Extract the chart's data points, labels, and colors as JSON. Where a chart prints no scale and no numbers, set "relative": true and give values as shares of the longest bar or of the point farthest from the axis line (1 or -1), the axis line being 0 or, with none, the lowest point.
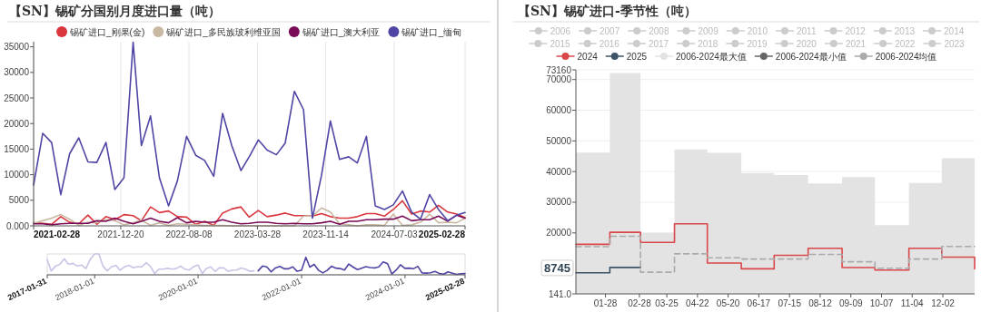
{
  "chart_data": [
    {
      "type": "line",
      "title": "【SN】锡矿分国别月度进口量（吨）",
      "legend": "top",
      "grid": "x",
      "marker": "none",
      "x": [
        "2021-02-28",
        "2021-03-31",
        "2021-04-30",
        "2021-05-31",
        "2021-06-30",
        "2021-07-31",
        "2021-08-31",
        "2021-09-30",
        "2021-10-31",
        "2021-11-30",
        "2021-12-31",
        "2022-01-31",
        "2022-02-28",
        "2022-03-31",
        "2022-04-30",
        "2022-05-31",
        "2022-06-30",
        "2022-07-31",
        "2022-08-31",
        "2022-09-30",
        "2022-10-31",
        "2022-11-30",
        "2022-12-31",
        "2023-01-31",
        "2023-02-28",
        "2023-03-31",
        "2023-04-30",
        "2023-05-31",
        "2023-06-30",
        "2023-07-31",
        "2023-08-31",
        "2023-09-30",
        "2023-10-31",
        "2023-11-30",
        "2023-12-31",
        "2024-01-31",
        "2024-02-29",
        "2024-03-31",
        "2024-04-30",
        "2024-05-31",
        "2024-06-30",
        "2024-07-31",
        "2024-08-31",
        "2024-09-30",
        "2024-10-31",
        "2024-11-30",
        "2024-12-31",
        "2025-01-31",
        "2025-02-28"
      ],
      "xlim": [
        "2021-02-28",
        "2025-02-28"
      ],
      "xticks": [
        "2021-02-28",
        "2021-12-20",
        "2022-08-08",
        "2023-03-28",
        "2023-11-14",
        "2024-07-03",
        "2025-02-28"
      ],
      "ylim": [
        0,
        36000
      ],
      "yticks": [
        {
          "value": 0,
          "label": "0.000"
        },
        5000,
        10000,
        15000,
        20000,
        25000,
        30000,
        35000
      ],
      "series": [
        {
          "name": "锡矿进口_刚果(金)",
          "color": "#d9363e",
          "values": [
            600,
            500,
            300,
            1800,
            700,
            400,
            2100,
            300,
            1800,
            1200,
            2200,
            2000,
            1000,
            3700,
            2600,
            2900,
            1800,
            1700,
            300,
            900,
            100,
            2500,
            3300,
            3700,
            1700,
            3000,
            1800,
            2100,
            2500,
            2000,
            2000,
            1900,
            2400,
            1800,
            1500,
            1500,
            1800,
            2400,
            2400,
            1900,
            3200,
            4900,
            2300,
            2900,
            2700,
            4000,
            2700,
            2300,
            1600
          ]
        },
        {
          "name": "锡矿进口_多民族玻利维亚国",
          "color": "#c9b9a3",
          "values": [
            500,
            1000,
            1500,
            2200,
            1300,
            100,
            700,
            600,
            1200,
            1000,
            200,
            600,
            1100,
            100,
            600,
            100,
            400,
            300,
            200,
            100,
            100,
            100,
            0,
            0,
            0,
            0,
            0,
            0,
            0,
            0,
            1900,
            1900,
            3500,
            2700,
            400,
            200,
            0,
            200,
            200,
            100,
            2300,
            100,
            200,
            700,
            2300,
            600,
            700,
            600,
            1500
          ]
        },
        {
          "name": "锡矿进口_澳大利亚",
          "color": "#7a0b56",
          "values": [
            400,
            400,
            200,
            400,
            500,
            500,
            500,
            1000,
            900,
            1500,
            900,
            400,
            900,
            1500,
            900,
            600,
            1600,
            600,
            900,
            700,
            700,
            1200,
            700,
            400,
            500,
            700,
            700,
            500,
            400,
            500,
            400,
            400,
            600,
            900,
            300,
            900,
            900,
            1200,
            1200,
            1300,
            1300,
            1900,
            1000,
            1200,
            1200,
            1900,
            900,
            2100,
            1500
          ]
        },
        {
          "name": "锡矿进口_缅甸",
          "color": "#4e45a4",
          "values": [
            8000,
            18100,
            16300,
            6100,
            14100,
            17200,
            12500,
            12400,
            16300,
            7100,
            9400,
            35900,
            15700,
            21500,
            9400,
            3900,
            8800,
            17500,
            13800,
            12800,
            9700,
            22000,
            15700,
            10800,
            13500,
            16800,
            14800,
            13900,
            16200,
            26300,
            22700,
            1500,
            9900,
            20500,
            13000,
            13500,
            12300,
            17500,
            3900,
            3200,
            4100,
            6800,
            2700,
            1300,
            6100,
            3200,
            1000,
            2100,
            2600
          ]
        }
      ]
    },
    {
      "type": "line",
      "relative": true,
      "marker": "none",
      "xlim": [
        "2017-01-31",
        "2025-02-28"
      ],
      "xticks": [
        "2017-01-31",
        "2018-01-01",
        "2020-01-01",
        "2022-01-01",
        "2024-01-01",
        "2025-02-28"
      ],
      "series": [
        {
          "color": "#c9c3e6",
          "x": [
            "2017-01-31",
            "2017-02-28",
            "2017-03-31",
            "2017-04-30",
            "2017-05-31",
            "2017-06-30",
            "2017-07-31",
            "2017-08-31",
            "2017-09-30",
            "2017-10-31",
            "2017-11-30",
            "2017-12-31",
            "2018-01-31",
            "2018-02-28",
            "2018-03-31",
            "2018-04-30",
            "2018-05-31",
            "2018-06-30",
            "2018-07-31",
            "2018-08-31",
            "2018-09-30",
            "2018-10-31",
            "2018-11-30",
            "2018-12-31",
            "2019-01-31",
            "2019-02-28",
            "2019-03-31",
            "2019-04-30",
            "2019-05-31",
            "2019-06-30",
            "2019-07-31",
            "2019-08-31",
            "2019-09-30",
            "2019-10-31",
            "2019-11-30",
            "2019-12-31",
            "2020-01-31",
            "2020-02-29",
            "2020-03-31",
            "2020-04-30",
            "2020-05-31",
            "2020-06-30",
            "2020-07-31",
            "2020-08-31",
            "2020-09-30",
            "2020-10-31",
            "2020-11-30",
            "2020-12-31",
            "2021-01-31"
          ],
          "values": [
            0.73,
            0.19,
            0.42,
            0.5,
            0.77,
            0.5,
            0.55,
            0.42,
            0.47,
            0.3,
            0.73,
            1,
            1,
            0.42,
            0.19,
            0.39,
            0.45,
            0.22,
            0.39,
            0.45,
            0.34,
            0.39,
            0.38,
            0.58,
            0.39,
            0.06,
            0.27,
            0.27,
            0.31,
            0.27,
            0.3,
            0.42,
            0.27,
            0.23,
            0.39,
            0.47,
            0.06,
            0.3,
            0.38,
            0.16,
            0.34,
            0.33,
            0.17,
            0.22,
            0.23,
            0.33,
            0.27,
            0.17,
            0.19
          ]
        },
        {
          "color": "#4e45a4",
          "x": [
            "2021-02-28",
            "2021-03-31",
            "2021-04-30",
            "2021-05-31",
            "2021-06-30",
            "2021-07-31",
            "2021-08-31",
            "2021-09-30",
            "2021-10-31",
            "2021-11-30",
            "2021-12-31",
            "2022-01-31",
            "2022-02-28",
            "2022-03-31",
            "2022-04-30",
            "2022-05-31",
            "2022-06-30",
            "2022-07-31",
            "2022-08-31",
            "2022-09-30",
            "2022-10-31",
            "2022-11-30",
            "2022-12-31",
            "2023-01-31",
            "2023-02-28",
            "2023-03-31",
            "2023-04-30",
            "2023-05-31",
            "2023-06-30",
            "2023-07-31",
            "2023-08-31",
            "2023-09-30",
            "2023-10-31",
            "2023-11-30",
            "2023-12-31",
            "2024-01-31",
            "2024-02-29",
            "2024-03-31",
            "2024-04-30",
            "2024-05-31",
            "2024-06-30",
            "2024-07-31",
            "2024-08-31",
            "2024-09-30",
            "2024-10-31",
            "2024-11-30",
            "2024-12-31",
            "2025-01-31",
            "2025-02-28"
          ],
          "values": [
            0.19,
            0.42,
            0.38,
            0.14,
            0.33,
            0.4,
            0.29,
            0.29,
            0.38,
            0.17,
            0.22,
            0.84,
            0.37,
            0.5,
            0.22,
            0.09,
            0.21,
            0.41,
            0.32,
            0.3,
            0.23,
            0.52,
            0.37,
            0.25,
            0.32,
            0.39,
            0.35,
            0.33,
            0.38,
            0.62,
            0.53,
            0.04,
            0.23,
            0.48,
            0.31,
            0.32,
            0.29,
            0.41,
            0.09,
            0.08,
            0.1,
            0.16,
            0.06,
            0.03,
            0.14,
            0.08,
            0.02,
            0.05,
            0.06
          ]
        }
      ]
    },
    {
      "type": "step",
      "title": "【SN】锡矿进口-季节性（吨）",
      "legend": "top",
      "grid": "y",
      "marker": "none",
      "x": [
        "--01-01",
        "--02-01",
        "--03-01",
        "--04-01",
        "--05-01",
        "--06-01",
        "--07-01",
        "--08-01",
        "--09-01",
        "--10-01",
        "--11-01",
        "--12-01",
        "--12-31"
      ],
      "xlim": [
        "--01-01",
        "--12-31"
      ],
      "xticks": [
        {
          "value": "--01-28",
          "label": "01-28"
        },
        {
          "value": "--02-28",
          "label": "02-28"
        },
        {
          "value": "--03-25",
          "label": "03-25"
        },
        {
          "value": "--04-22",
          "label": "04-22"
        },
        {
          "value": "--05-20",
          "label": "05-20"
        },
        {
          "value": "--06-17",
          "label": "06-17"
        },
        {
          "value": "--07-15",
          "label": "07-15"
        },
        {
          "value": "--08-12",
          "label": "08-12"
        },
        {
          "value": "--09-09",
          "label": "09-09"
        },
        {
          "value": "--10-07",
          "label": "10-07"
        },
        {
          "value": "--11-04",
          "label": "11-04"
        },
        {
          "value": "--12-02",
          "label": "12-02"
        }
      ],
      "ylim": [
        141,
        73160
      ],
      "yticks": [
        {
          "value": 141,
          "label": "141.0"
        },
        20000,
        30000,
        40000,
        50000,
        60000,
        70000,
        73160
      ],
      "annotations": [
        {
          "text": "8745",
          "y": 8745
        }
      ],
      "series": [
        {
          "name": "2006",
          "color": "#cccccc",
          "values": [
            null,
            null,
            null,
            null,
            null,
            null,
            null,
            null,
            null,
            null,
            null,
            null,
            null
          ]
        },
        {
          "name": "2007",
          "color": "#cccccc",
          "values": [
            null,
            null,
            null,
            null,
            null,
            null,
            null,
            null,
            null,
            null,
            null,
            null,
            null
          ]
        },
        {
          "name": "2008",
          "color": "#cccccc",
          "values": [
            null,
            null,
            null,
            null,
            null,
            null,
            null,
            null,
            null,
            null,
            null,
            null,
            null
          ]
        },
        {
          "name": "2009",
          "color": "#cccccc",
          "values": [
            null,
            null,
            null,
            null,
            null,
            null,
            null,
            null,
            null,
            null,
            null,
            null,
            null
          ]
        },
        {
          "name": "2010",
          "color": "#cccccc",
          "values": [
            null,
            null,
            null,
            null,
            null,
            null,
            null,
            null,
            null,
            null,
            null,
            null,
            null
          ]
        },
        {
          "name": "2011",
          "color": "#cccccc",
          "values": [
            null,
            null,
            null,
            null,
            null,
            null,
            null,
            null,
            null,
            null,
            null,
            null,
            null
          ]
        },
        {
          "name": "2012",
          "color": "#cccccc",
          "values": [
            null,
            null,
            null,
            null,
            null,
            null,
            null,
            null,
            null,
            null,
            null,
            null,
            null
          ]
        },
        {
          "name": "2013",
          "color": "#cccccc",
          "values": [
            null,
            null,
            null,
            null,
            null,
            null,
            null,
            null,
            null,
            null,
            null,
            null,
            null
          ]
        },
        {
          "name": "2014",
          "color": "#cccccc",
          "values": [
            null,
            null,
            null,
            null,
            null,
            null,
            null,
            null,
            null,
            null,
            null,
            null,
            null
          ]
        },
        {
          "name": "2015",
          "color": "#cccccc",
          "values": [
            null,
            null,
            null,
            null,
            null,
            null,
            null,
            null,
            null,
            null,
            null,
            null,
            null
          ]
        },
        {
          "name": "2016",
          "color": "#cccccc",
          "values": [
            null,
            null,
            null,
            null,
            null,
            null,
            null,
            null,
            null,
            null,
            null,
            null,
            null
          ]
        },
        {
          "name": "2017",
          "color": "#cccccc",
          "values": [
            null,
            null,
            null,
            null,
            null,
            null,
            null,
            null,
            null,
            null,
            null,
            null,
            null
          ]
        },
        {
          "name": "2018",
          "color": "#cccccc",
          "values": [
            null,
            null,
            null,
            null,
            null,
            null,
            null,
            null,
            null,
            null,
            null,
            null,
            null
          ]
        },
        {
          "name": "2019",
          "color": "#cccccc",
          "values": [
            null,
            null,
            null,
            null,
            null,
            null,
            null,
            null,
            null,
            null,
            null,
            null,
            null
          ]
        },
        {
          "name": "2020",
          "color": "#cccccc",
          "values": [
            null,
            null,
            null,
            null,
            null,
            null,
            null,
            null,
            null,
            null,
            null,
            null,
            null
          ]
        },
        {
          "name": "2021",
          "color": "#cccccc",
          "values": [
            null,
            null,
            null,
            null,
            null,
            null,
            null,
            null,
            null,
            null,
            null,
            null,
            null
          ]
        },
        {
          "name": "2022",
          "color": "#cccccc",
          "values": [
            null,
            null,
            null,
            null,
            null,
            null,
            null,
            null,
            null,
            null,
            null,
            null,
            null
          ]
        },
        {
          "name": "2023",
          "color": "#cccccc",
          "values": [
            null,
            null,
            null,
            null,
            null,
            null,
            null,
            null,
            null,
            null,
            null,
            null,
            null
          ]
        },
        {
          "name": "2024",
          "color": "#d9474a",
          "values": [
            16300,
            20200,
            16900,
            23000,
            10200,
            8300,
            12700,
            15000,
            8700,
            7900,
            15000,
            12100,
            8300
          ]
        },
        {
          "name": "2025",
          "color": "#3d5366",
          "values": [
            7000,
            8745,
            8745,
            null,
            null,
            null,
            null,
            null,
            null,
            null,
            null,
            null,
            null
          ]
        },
        {
          "name": "2006-2024最大值",
          "type": "area",
          "color": "#e3e3e3",
          "values": [
            46200,
            72100,
            20000,
            47200,
            46100,
            39500,
            38900,
            36100,
            38200,
            22500,
            36300,
            44300,
            45800
          ]
        },
        {
          "name": "2006-2024最小值",
          "color": "#666666",
          "values": [
            null,
            null,
            null,
            null,
            null,
            null,
            null,
            null,
            null,
            null,
            null,
            null,
            null
          ]
        },
        {
          "name": "2006-2024均值",
          "color": "#aaaaaa",
          "line_style": "dashed",
          "values": [
            15500,
            18900,
            7200,
            13200,
            11900,
            11500,
            11500,
            13000,
            10600,
            8500,
            11500,
            15600,
            15600
          ]
        }
      ]
    }
  ]
}
